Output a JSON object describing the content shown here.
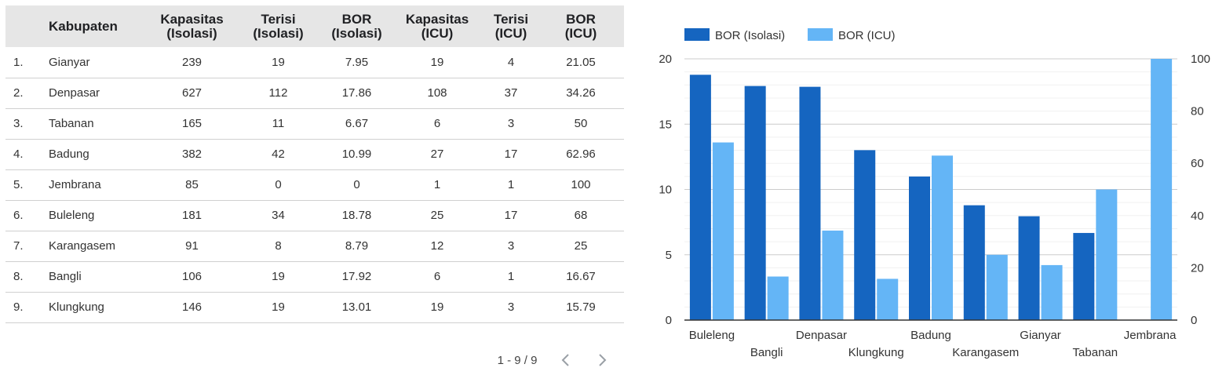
{
  "table": {
    "headers": [
      {
        "l1": "",
        "l2": ""
      },
      {
        "l1": "Kabupaten",
        "l2": ""
      },
      {
        "l1": "Kapasitas",
        "l2": "(Isolasi)"
      },
      {
        "l1": "Terisi",
        "l2": "(Isolasi)"
      },
      {
        "l1": "BOR",
        "l2": "(Isolasi)"
      },
      {
        "l1": "Kapasitas",
        "l2": "(ICU)"
      },
      {
        "l1": "Terisi",
        "l2": "(ICU)"
      },
      {
        "l1": "BOR",
        "l2": "(ICU)"
      }
    ],
    "rows": [
      [
        "1.",
        "Gianyar",
        "239",
        "19",
        "7.95",
        "19",
        "4",
        "21.05"
      ],
      [
        "2.",
        "Denpasar",
        "627",
        "112",
        "17.86",
        "108",
        "37",
        "34.26"
      ],
      [
        "3.",
        "Tabanan",
        "165",
        "11",
        "6.67",
        "6",
        "3",
        "50"
      ],
      [
        "4.",
        "Badung",
        "382",
        "42",
        "10.99",
        "27",
        "17",
        "62.96"
      ],
      [
        "5.",
        "Jembrana",
        "85",
        "0",
        "0",
        "1",
        "1",
        "100"
      ],
      [
        "6.",
        "Buleleng",
        "181",
        "34",
        "18.78",
        "25",
        "17",
        "68"
      ],
      [
        "7.",
        "Karangasem",
        "91",
        "8",
        "8.79",
        "12",
        "3",
        "25"
      ],
      [
        "8.",
        "Bangli",
        "106",
        "19",
        "17.92",
        "6",
        "1",
        "16.67"
      ],
      [
        "9.",
        "Klungkung",
        "146",
        "19",
        "13.01",
        "19",
        "3",
        "15.79"
      ]
    ]
  },
  "pagination": {
    "label": "1 - 9 / 9",
    "prev_icon": "chevron-left-icon",
    "next_icon": "chevron-right-icon"
  },
  "chart_data": {
    "type": "bar",
    "categories": [
      "Buleleng",
      "Bangli",
      "Denpasar",
      "Klungkung",
      "Badung",
      "Karangasem",
      "Gianyar",
      "Tabanan",
      "Jembrana"
    ],
    "series": [
      {
        "name": "BOR (Isolasi)",
        "axis": "left",
        "color": "#1565c0",
        "values": [
          18.78,
          17.92,
          17.86,
          13.01,
          10.99,
          8.79,
          7.95,
          6.67,
          0
        ]
      },
      {
        "name": "BOR (ICU)",
        "axis": "right",
        "color": "#64b5f6",
        "values": [
          68,
          16.67,
          34.26,
          15.79,
          62.96,
          25,
          21.05,
          50,
          100
        ]
      }
    ],
    "y_left": {
      "range": [
        0,
        20
      ],
      "ticks": [
        "0",
        "5",
        "10",
        "15",
        "20"
      ]
    },
    "y_right": {
      "range": [
        0,
        100
      ],
      "ticks": [
        "0",
        "20",
        "40",
        "60",
        "80",
        "100"
      ]
    },
    "legend_position": "top-left",
    "grid": true
  }
}
